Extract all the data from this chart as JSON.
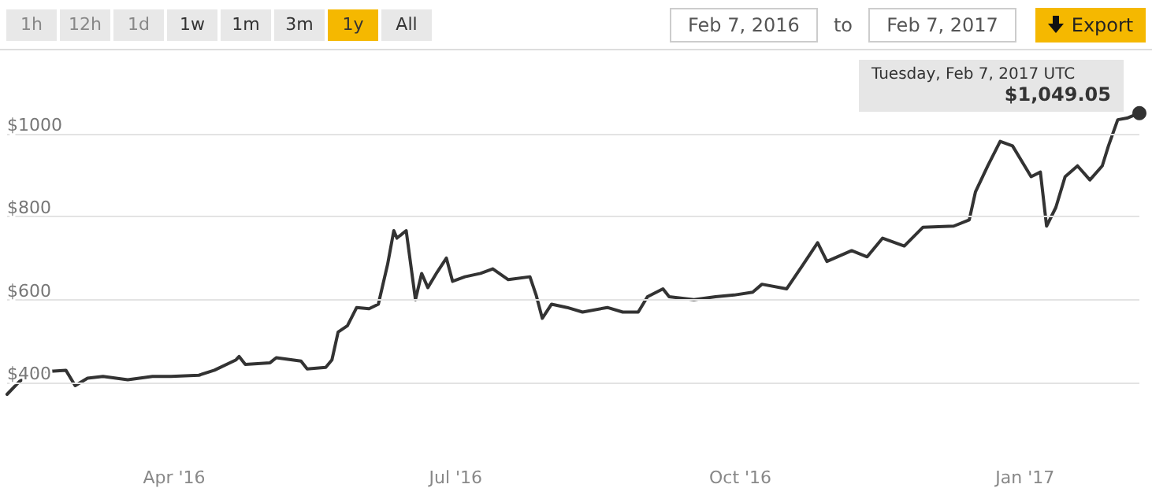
{
  "chart_data": {
    "type": "line",
    "annotations": [
      "1h",
      "12h",
      "1d",
      "1w",
      "1m",
      "3m",
      "1y",
      "All",
      "Feb 7, 2016",
      "to",
      "Feb 7, 2017",
      "Export",
      "Tuesday, Feb 7, 2017 UTC",
      "$1,049.05"
    ],
    "x": [
      "2016-02-07",
      "2016-02-11",
      "2016-02-17",
      "2016-02-18",
      "2016-02-26",
      "2016-02-29",
      "2016-03-04",
      "2016-03-09",
      "2016-03-17",
      "2016-03-25",
      "2016-03-31",
      "2016-04-09",
      "2016-04-14",
      "2016-04-21",
      "2016-04-22",
      "2016-04-24",
      "2016-05-02",
      "2016-05-04",
      "2016-05-12",
      "2016-05-14",
      "2016-05-20",
      "2016-05-22",
      "2016-05-24",
      "2016-05-27",
      "2016-05-30",
      "2016-06-03",
      "2016-06-06",
      "2016-06-09",
      "2016-06-11",
      "2016-06-12",
      "2016-06-15",
      "2016-06-18",
      "2016-06-20",
      "2016-06-22",
      "2016-06-25",
      "2016-06-28",
      "2016-06-30",
      "2016-07-04",
      "2016-07-09",
      "2016-07-13",
      "2016-07-18",
      "2016-07-25",
      "2016-07-27",
      "2016-07-29",
      "2016-08-01",
      "2016-08-06",
      "2016-08-11",
      "2016-08-19",
      "2016-08-24",
      "2016-08-29",
      "2016-09-01",
      "2016-09-06",
      "2016-09-08",
      "2016-09-16",
      "2016-09-23",
      "2016-09-29",
      "2016-10-05",
      "2016-10-08",
      "2016-10-16",
      "2016-10-21",
      "2016-10-26",
      "2016-10-29",
      "2016-11-06",
      "2016-11-11",
      "2016-11-16",
      "2016-11-23",
      "2016-11-29",
      "2016-12-09",
      "2016-12-14",
      "2016-12-16",
      "2016-12-20",
      "2016-12-24",
      "2016-12-28",
      "2017-01-03",
      "2017-01-06",
      "2017-01-08",
      "2017-01-11",
      "2017-01-14",
      "2017-01-18",
      "2017-01-22",
      "2017-01-26",
      "2017-01-28",
      "2017-01-31",
      "2017-02-03",
      "2017-02-07"
    ],
    "series": [
      {
        "color": "#333333",
        "values": [
          372,
          403,
          433,
          426,
          430,
          393,
          411,
          415,
          407,
          415,
          415,
          418,
          430,
          455,
          463,
          444,
          448,
          460,
          452,
          433,
          437,
          455,
          522,
          537,
          581,
          578,
          589,
          685,
          766,
          748,
          766,
          600,
          663,
          629,
          666,
          700,
          644,
          655,
          663,
          674,
          648,
          655,
          611,
          555,
          589,
          581,
          570,
          581,
          570,
          570,
          607,
          626,
          607,
          600,
          607,
          611,
          618,
          637,
          626,
          681,
          737,
          692,
          718,
          703,
          748,
          729,
          774,
          777,
          792,
          859,
          922,
          981,
          970,
          896,
          907,
          777,
          822,
          896,
          922,
          888,
          922,
          970,
          1033,
          1037,
          1049
        ]
      }
    ],
    "xlim": [
      "2016-02-07",
      "2017-02-07"
    ],
    "xticks": [
      {
        "value": "2016-04-01",
        "label": "Apr '16"
      },
      {
        "value": "2016-07-01",
        "label": "Jul '16"
      },
      {
        "value": "2016-10-01",
        "label": "Oct '16"
      },
      {
        "value": "2017-01-01",
        "label": "Jan '17"
      }
    ],
    "ylim": [
      120,
      1200
    ],
    "yticks": [
      {
        "value": 400,
        "label": "$400"
      },
      {
        "value": 600,
        "label": "$600"
      },
      {
        "value": 800,
        "label": "$800"
      },
      {
        "value": 1000,
        "label": "$1000"
      }
    ],
    "grid": "y",
    "marker": "none",
    "line_style": "solid"
  }
}
